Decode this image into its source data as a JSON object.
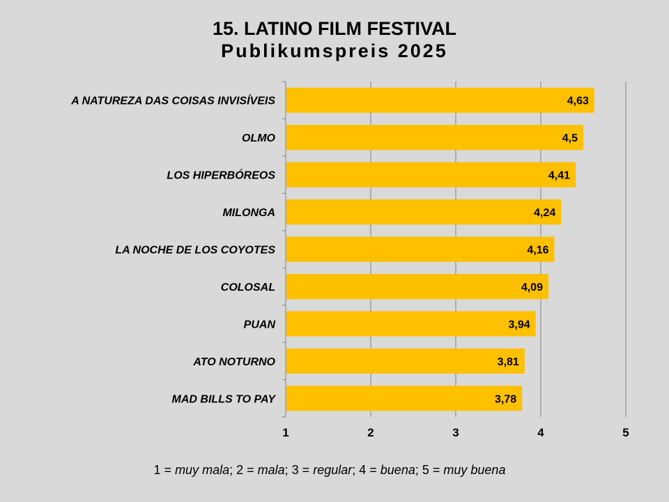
{
  "title": "15. LATINO FILM FESTIVAL",
  "subtitle": "Publikumspreis 2025",
  "footnote": [
    {
      "num": "1 = ",
      "label": "muy mala",
      "sep": "; "
    },
    {
      "num": "2 = ",
      "label": "mala",
      "sep": "; "
    },
    {
      "num": "3 = ",
      "label": "regular",
      "sep": "; "
    },
    {
      "num": "4 = ",
      "label": "buena",
      "sep": "; "
    },
    {
      "num": "5 = ",
      "label": "muy buena",
      "sep": ""
    }
  ],
  "chart_data": {
    "type": "bar",
    "orientation": "horizontal",
    "categories": [
      "A NATUREZA DAS COISAS INVISÍVEIS",
      "OLMO",
      "LOS HIPERBÓREOS",
      "MILONGA",
      "LA NOCHE DE LOS COYOTES",
      "COLOSAL",
      "PUAN",
      "ATO NOTURNO",
      "MAD BILLS TO PAY"
    ],
    "values": [
      4.63,
      4.5,
      4.41,
      4.24,
      4.16,
      4.09,
      3.94,
      3.81,
      3.78
    ],
    "data_labels": [
      "4,63",
      "4,5",
      "4,41",
      "4,24",
      "4,16",
      "4,09",
      "3,94",
      "3,81",
      "3,78"
    ],
    "xlim": [
      1,
      5
    ],
    "xticks": [
      1,
      2,
      3,
      4,
      5
    ],
    "xtick_labels": [
      "1",
      "2",
      "3",
      "4",
      "5"
    ],
    "grid": "vertical",
    "bar_color": "#ffc000",
    "background": "#d9d9d9"
  }
}
